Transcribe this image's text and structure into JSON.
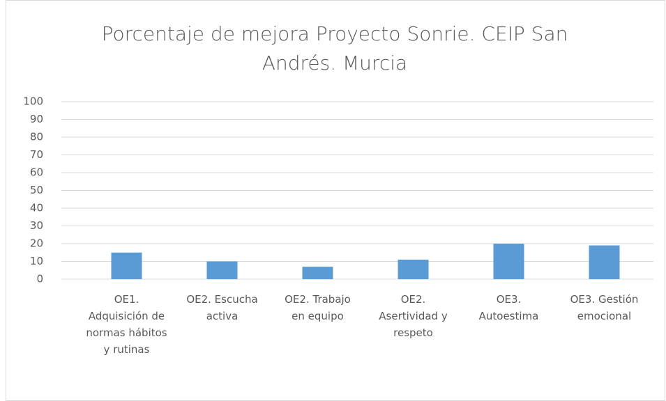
{
  "chart_data": {
    "type": "bar",
    "title": "Porcentaje de mejora Proyecto Sonrie. CEIP San Andrés. Murcia",
    "categories": [
      "OE1. Adquisición de normas hábitos y rutinas",
      "OE2. Escucha activa",
      "OE2. Trabajo en equipo",
      "OE2. Asertividad y respeto",
      "OE3. Autoestima",
      "OE3. Gestión emocional"
    ],
    "values": [
      15,
      10,
      7,
      11,
      20,
      19
    ],
    "color": "#5b9bd5",
    "ylim": [
      0,
      100
    ],
    "yticks": [
      0,
      10,
      20,
      30,
      40,
      50,
      60,
      70,
      80,
      90,
      100
    ],
    "grid": true
  }
}
